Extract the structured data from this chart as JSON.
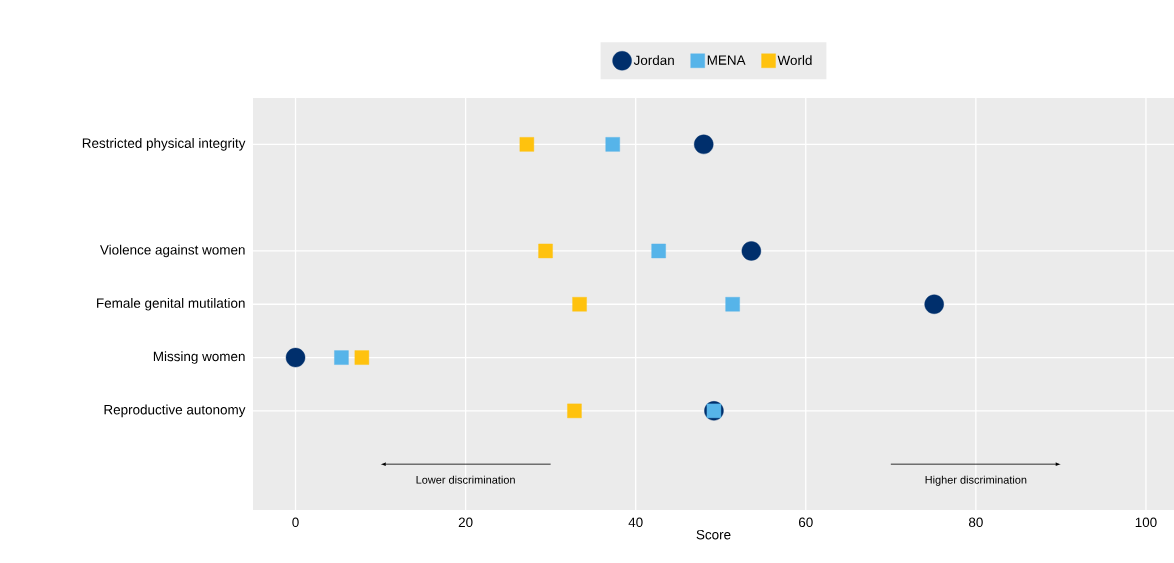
{
  "chart_data": {
    "type": "scatter",
    "xlabel": "Score",
    "categories": [
      "Restricted physical integrity",
      "Violence against women",
      "Female genital mutilation",
      "Missing women",
      "Reproductive autonomy"
    ],
    "series": [
      {
        "name": "Jordan",
        "color": "#002f6c",
        "marker": "circle",
        "values": [
          48.0,
          53.6,
          75.1,
          0,
          49.2
        ]
      },
      {
        "name": "MENA",
        "color": "#56b4e9",
        "marker": "square",
        "values": [
          37.3,
          42.7,
          51.4,
          5.4,
          49.2
        ]
      },
      {
        "name": "World",
        "color": "#ffc20e",
        "marker": "square",
        "values": [
          27.2,
          29.4,
          33.4,
          7.8,
          32.8
        ]
      }
    ],
    "orientation": "horizontal",
    "xlim": [
      -5,
      103.3
    ],
    "xticks": [
      0,
      20,
      40,
      60,
      80,
      100
    ],
    "grid": true,
    "legend": "top",
    "annotations": [
      "Lower discrimination",
      "Higher discrimination"
    ]
  }
}
